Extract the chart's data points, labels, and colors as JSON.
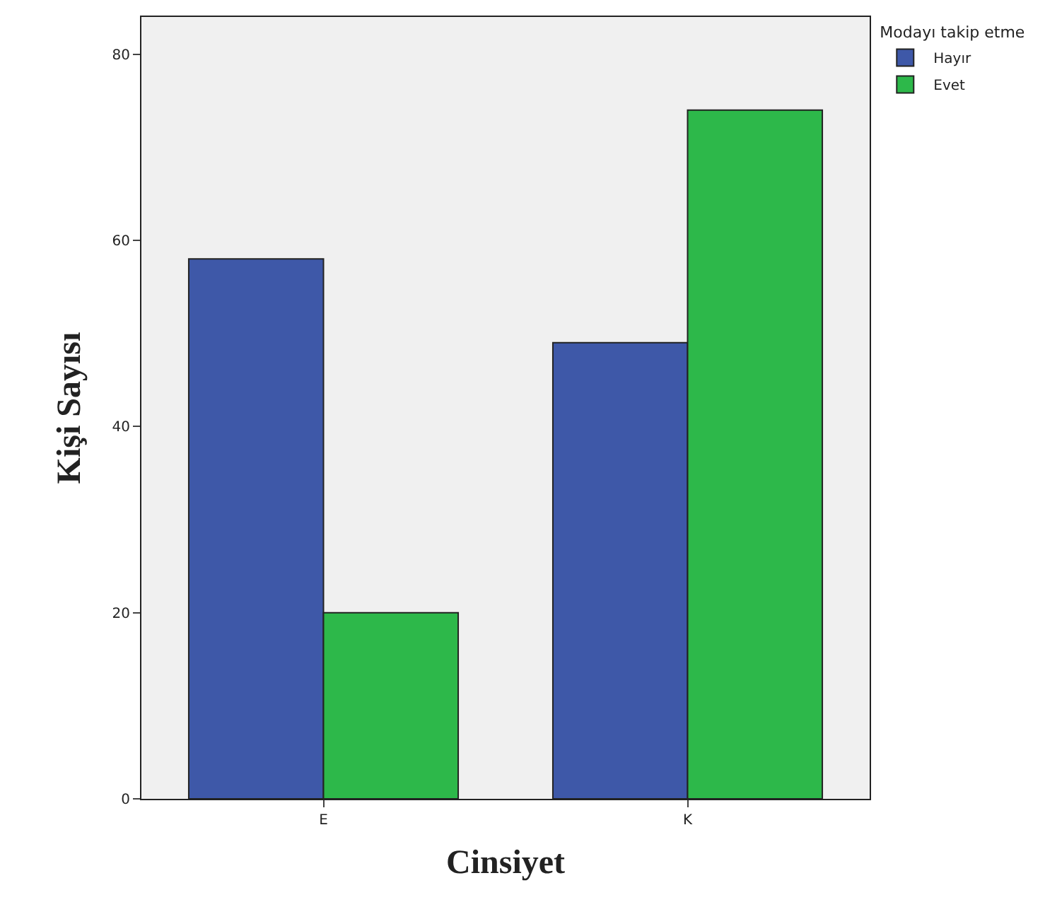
{
  "chart_data": {
    "type": "bar",
    "xlabel": "Cinsiyet",
    "ylabel": "Kişi Sayısı",
    "legend_title": "Modayı takip etme",
    "categories": [
      "E",
      "K"
    ],
    "series": [
      {
        "name": "Hayır",
        "color": "#3e58a8",
        "values": [
          58,
          49
        ]
      },
      {
        "name": "Evet",
        "color": "#2db84a",
        "values": [
          20,
          74
        ]
      }
    ],
    "ylim": [
      0,
      84
    ],
    "yticks": [
      0,
      20,
      40,
      60,
      80
    ],
    "grid": false,
    "legend": "top right"
  }
}
